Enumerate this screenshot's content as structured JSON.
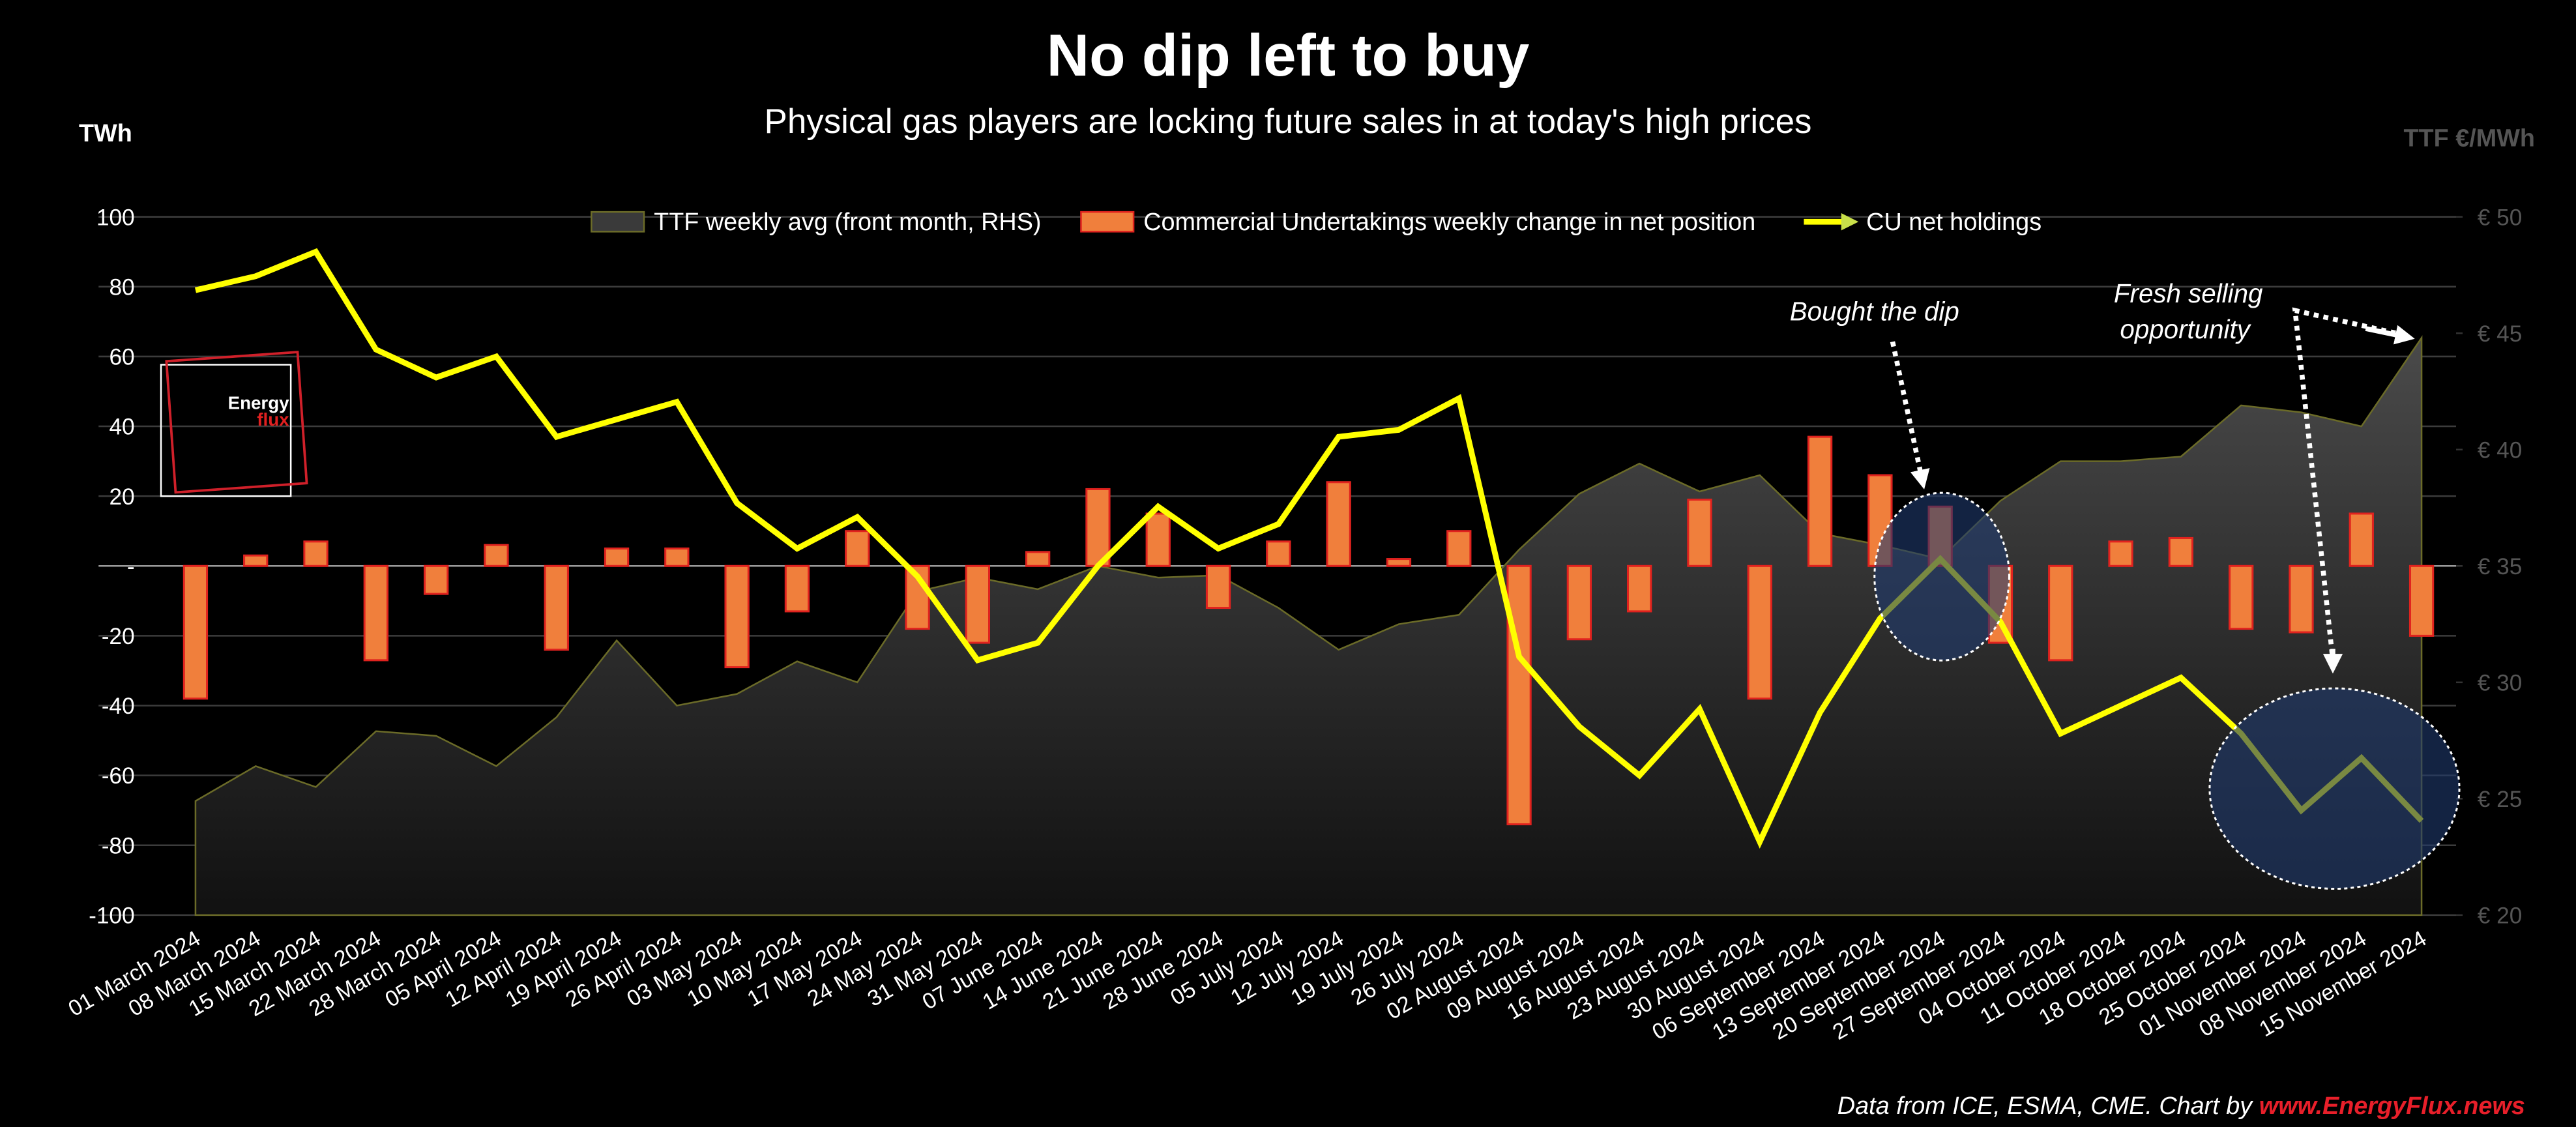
{
  "title": "No dip left to buy",
  "subtitle": "Physical gas players are locking future sales in at today's high prices",
  "logo": {
    "line1": "Energy",
    "line2": "flux"
  },
  "footer": {
    "text": "Data from ICE, ESMA, CME. Chart by ",
    "link": "www.EnergyFlux.news"
  },
  "chart_data": {
    "type": "combo",
    "ylabel": "TWh",
    "y2label": "TTF €/MWh",
    "categories": [
      "01 March 2024",
      "08 March 2024",
      "15 March 2024",
      "22 March 2024",
      "28 March 2024",
      "05 April 2024",
      "12 April 2024",
      "19 April 2024",
      "26 April 2024",
      "03 May 2024",
      "10 May 2024",
      "17 May 2024",
      "24 May 2024",
      "31 May 2024",
      "07 June 2024",
      "14 June 2024",
      "21 June 2024",
      "28 June 2024",
      "05 July 2024",
      "12 July 2024",
      "19 July 2024",
      "26 July 2024",
      "02 August 2024",
      "09 August 2024",
      "16 August 2024",
      "23 August 2024",
      "30 August 2024",
      "06 September 2024",
      "13 September 2024",
      "20 September 2024",
      "27 September 2024",
      "04 October 2024",
      "11 October 2024",
      "18 October 2024",
      "25 October 2024",
      "01 November 2024",
      "08 November 2024",
      "15 November 2024"
    ],
    "series": [
      {
        "name": "TTF weekly avg (front month, RHS)",
        "type": "area",
        "axis": "y2",
        "color": "#3a3a3a",
        "values": [
          24.9,
          26.4,
          25.5,
          27.9,
          27.7,
          26.4,
          28.5,
          31.8,
          29.0,
          29.5,
          30.9,
          30.0,
          33.9,
          34.5,
          34.0,
          35.0,
          34.5,
          34.6,
          33.2,
          31.4,
          32.5,
          32.9,
          35.7,
          38.1,
          39.4,
          38.2,
          38.9,
          36.4,
          35.9,
          35.3,
          37.8,
          39.5,
          39.5,
          39.7,
          41.9,
          41.6,
          41.0,
          44.8
        ]
      },
      {
        "name": "Commercial Undertakings weekly change in net position",
        "type": "bar",
        "color": "#f07f3c",
        "values": [
          -38,
          3,
          7,
          -27,
          -8,
          6,
          -24,
          5,
          5,
          -29,
          -13,
          10,
          -18,
          -22,
          4,
          22,
          15,
          -12,
          7,
          24,
          2,
          10,
          -74,
          -21,
          -13,
          19,
          -38,
          37,
          26,
          17,
          -22,
          -27,
          7,
          8,
          -18,
          -19,
          15,
          -20
        ]
      },
      {
        "name": "CU net holdings",
        "type": "line",
        "color": "#ffff00",
        "values": [
          79,
          83,
          90,
          62,
          54,
          60,
          37,
          42,
          47,
          18,
          5,
          14,
          -3,
          -27,
          -22,
          0,
          17,
          5,
          12,
          37,
          39,
          48,
          -26,
          -46,
          -60,
          -41,
          -79,
          -42,
          -15,
          2,
          -16,
          -48,
          -40,
          -32,
          -48,
          -70,
          -55,
          -73
        ]
      }
    ],
    "ylim": [
      -100,
      100
    ],
    "yticks": [
      -100,
      -80,
      -60,
      -40,
      -20,
      {
        "value": 0,
        "label": "-"
      },
      20,
      40,
      60,
      80,
      100
    ],
    "y2lim": [
      20,
      50
    ],
    "y2ticks": [
      {
        "value": 20,
        "label": "€ 20"
      },
      {
        "value": 25,
        "label": "€ 25"
      },
      {
        "value": 30,
        "label": "€ 30"
      },
      {
        "value": 35,
        "label": "€ 35"
      },
      {
        "value": 40,
        "label": "€ 40"
      },
      {
        "value": 45,
        "label": "€ 45"
      },
      {
        "value": 50,
        "label": "€ 50"
      }
    ],
    "grid": true,
    "legend": "top",
    "annotations": [
      {
        "text": "Bought the dip"
      },
      {
        "lines": [
          "Fresh selling",
          "opportunity"
        ]
      }
    ]
  }
}
